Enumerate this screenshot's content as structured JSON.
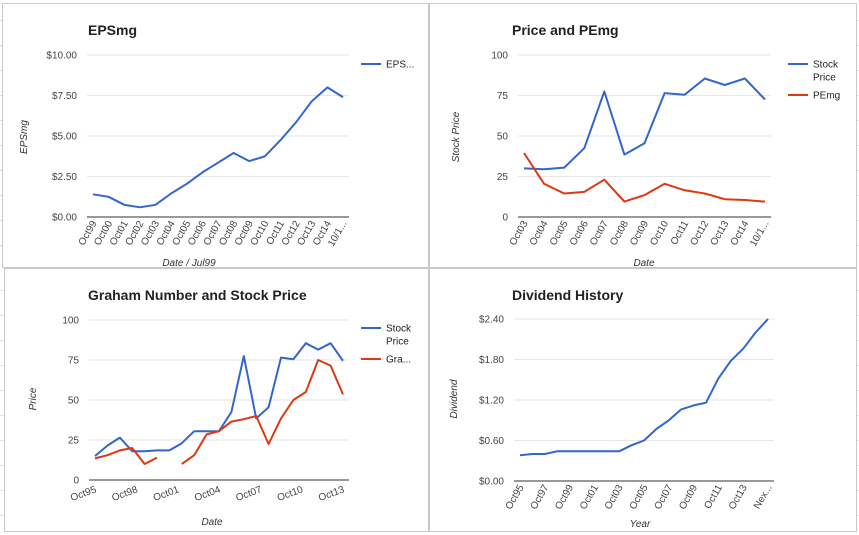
{
  "chart_data": [
    {
      "type": "line",
      "title": "EPSmg",
      "xlabel": "Date / Jul99",
      "ylabel": "EPSmg",
      "ylim": [
        0,
        10
      ],
      "y_ticks": [
        0,
        2.5,
        5,
        7.5,
        10
      ],
      "y_tick_labels": [
        "$0.00",
        "$2.50",
        "$5.00",
        "$7.50",
        "$10.00"
      ],
      "x_tick_labels": [
        "Oct99",
        "Oct00",
        "Oct01",
        "Oct02",
        "Oct03",
        "Oct04",
        "Oct05",
        "Oct06",
        "Oct07",
        "Oct08",
        "Oct09",
        "Oct10",
        "Oct11",
        "Oct12",
        "Oct13",
        "Oct14",
        "10/1..."
      ],
      "legend_position": "right",
      "series": [
        {
          "name": "EPS...",
          "color": "#3366cc",
          "values": [
            1.4,
            1.25,
            0.75,
            0.6,
            0.75,
            1.45,
            2.05,
            2.75,
            3.35,
            3.95,
            3.45,
            3.75,
            4.75,
            5.85,
            7.15,
            8.0,
            7.4
          ]
        }
      ]
    },
    {
      "type": "line",
      "title": "Price and PEmg",
      "xlabel": "Date",
      "ylabel": "Stock Price",
      "ylim": [
        0,
        100
      ],
      "y_ticks": [
        0,
        25,
        50,
        75,
        100
      ],
      "y_tick_labels": [
        "0",
        "25",
        "50",
        "75",
        "100"
      ],
      "x_tick_labels": [
        "Oct03",
        "Oct04",
        "Oct05",
        "Oct06",
        "Oct07",
        "Oct08",
        "Oct09",
        "Oct10",
        "Oct11",
        "Oct12",
        "Oct13",
        "Oct14",
        "10/1..."
      ],
      "legend_position": "right",
      "series": [
        {
          "name": "Stock Price",
          "color": "#3366cc",
          "values": [
            30,
            29.5,
            30.5,
            42.5,
            77.5,
            38.5,
            45.5,
            76.5,
            75.5,
            85.5,
            81.5,
            85.5,
            72.5
          ]
        },
        {
          "name": "PEmg",
          "color": "#dc3912",
          "values": [
            39.5,
            20.5,
            14.5,
            15.5,
            23.0,
            9.5,
            13.5,
            20.5,
            16.5,
            14.5,
            11.0,
            10.5,
            9.5
          ]
        }
      ]
    },
    {
      "type": "line",
      "title": "Graham Number and Stock Price",
      "xlabel": "Date",
      "ylabel": "Price",
      "ylim": [
        0,
        100
      ],
      "y_ticks": [
        0,
        25,
        50,
        75,
        100
      ],
      "y_tick_labels": [
        "0",
        "25",
        "50",
        "75",
        "100"
      ],
      "x_tick_labels": [
        "Oct95",
        "Oct98",
        "Oct01",
        "Oct04",
        "Oct07",
        "Oct10",
        "Oct13"
      ],
      "legend_position": "right",
      "series": [
        {
          "name": "Stock Price",
          "color": "#3366cc",
          "values": [
            15,
            21.5,
            26.5,
            18,
            18,
            18.5,
            18.5,
            23,
            30.5,
            30.5,
            30.5,
            42.5,
            77.5,
            38.5,
            45.5,
            76.5,
            75.5,
            85.5,
            81.5,
            85.5,
            74.5
          ]
        },
        {
          "name": "Gra...",
          "color": "#dc3912",
          "values": [
            13.5,
            15.5,
            18.5,
            20,
            10,
            14,
            null,
            10,
            15.5,
            28.5,
            30.5,
            36.5,
            38,
            40,
            22.5,
            38.5,
            50,
            55,
            75,
            71.5,
            53.5
          ]
        }
      ]
    },
    {
      "type": "line",
      "title": "Dividend History",
      "xlabel": "Year",
      "ylabel": "Dividend",
      "ylim": [
        0,
        2.4
      ],
      "y_ticks": [
        0,
        0.6,
        1.2,
        1.8,
        2.4
      ],
      "y_tick_labels": [
        "$0.00",
        "$0.60",
        "$1.20",
        "$1.80",
        "$2.40"
      ],
      "x_tick_labels": [
        "Oct95",
        "Oct97",
        "Oct99",
        "Oct01",
        "Oct03",
        "Oct05",
        "Oct07",
        "Oct09",
        "Oct11",
        "Oct13",
        "Nex..."
      ],
      "series": [
        {
          "name": "Dividend",
          "color": "#3366cc",
          "values": [
            0.38,
            0.4,
            0.4,
            0.44,
            0.44,
            0.44,
            0.44,
            0.44,
            0.44,
            0.53,
            0.6,
            0.77,
            0.9,
            1.06,
            1.12,
            1.16,
            1.52,
            1.78,
            1.96,
            2.2,
            2.4
          ]
        }
      ]
    }
  ]
}
